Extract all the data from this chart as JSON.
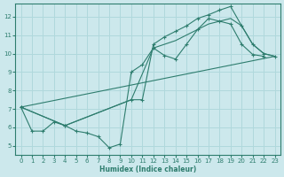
{
  "xlabel": "Humidex (Indice chaleur)",
  "bg_color": "#cce8ec",
  "grid_color": "#b0d8dc",
  "line_color": "#2e7d6e",
  "xlim": [
    -0.5,
    23.5
  ],
  "ylim": [
    4.5,
    12.7
  ],
  "xticks": [
    0,
    1,
    2,
    3,
    4,
    5,
    6,
    7,
    8,
    9,
    10,
    11,
    12,
    13,
    14,
    15,
    16,
    17,
    18,
    19,
    20,
    21,
    22,
    23
  ],
  "yticks": [
    5,
    6,
    7,
    8,
    9,
    10,
    11,
    12
  ],
  "lines": [
    {
      "x": [
        0,
        1,
        2,
        3,
        4,
        5,
        6,
        7,
        8,
        9,
        10,
        11,
        12,
        13,
        14,
        15,
        16,
        17,
        18,
        19,
        20,
        21,
        22
      ],
      "y": [
        7.1,
        5.8,
        5.8,
        6.3,
        6.1,
        5.8,
        5.7,
        5.5,
        4.9,
        5.1,
        9.0,
        9.4,
        10.3,
        9.9,
        9.7,
        10.5,
        11.3,
        11.9,
        11.75,
        11.6,
        10.5,
        9.95,
        9.85
      ],
      "marker": true
    },
    {
      "x": [
        0,
        4,
        10,
        11,
        12,
        13,
        14,
        15,
        16,
        17,
        18,
        19,
        20,
        21,
        22,
        23
      ],
      "y": [
        7.1,
        6.1,
        7.5,
        7.5,
        10.5,
        10.9,
        11.2,
        11.5,
        11.9,
        12.1,
        12.35,
        12.55,
        11.5,
        10.5,
        10.0,
        9.85
      ],
      "marker": true
    },
    {
      "x": [
        0,
        4,
        10,
        12,
        13,
        14,
        15,
        16,
        17,
        18,
        19,
        20,
        21,
        22,
        23
      ],
      "y": [
        7.1,
        6.1,
        7.5,
        10.3,
        10.5,
        10.7,
        11.0,
        11.3,
        11.6,
        11.75,
        11.9,
        11.5,
        10.5,
        10.0,
        9.85
      ],
      "marker": false
    },
    {
      "x": [
        0,
        23
      ],
      "y": [
        7.1,
        9.85
      ],
      "marker": false
    }
  ]
}
